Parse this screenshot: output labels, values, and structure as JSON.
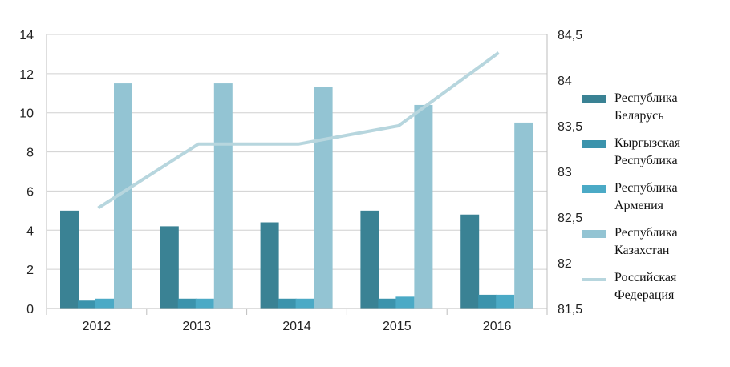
{
  "chart_data": {
    "type": "bar",
    "categories": [
      "2012",
      "2013",
      "2014",
      "2015",
      "2016"
    ],
    "series": [
      {
        "name": "Республика Беларусь",
        "kind": "bar",
        "axis": "left",
        "color": "#3A8294",
        "values": [
          5.0,
          4.2,
          4.4,
          5.0,
          4.8
        ]
      },
      {
        "name": "Кыргызская Республика",
        "kind": "bar",
        "axis": "left",
        "color": "#3B93AC",
        "values": [
          0.4,
          0.5,
          0.5,
          0.5,
          0.7
        ]
      },
      {
        "name": "Республика Армения",
        "kind": "bar",
        "axis": "left",
        "color": "#4BAAC6",
        "values": [
          0.5,
          0.5,
          0.5,
          0.6,
          0.7
        ]
      },
      {
        "name": "Республика Казахстан",
        "kind": "bar",
        "axis": "left",
        "color": "#93C4D3",
        "values": [
          11.5,
          11.5,
          11.3,
          10.4,
          9.5
        ]
      },
      {
        "name": "Российская Федерация",
        "kind": "line",
        "axis": "right",
        "color": "#B7D6DE",
        "values": [
          82.6,
          83.3,
          83.3,
          83.5,
          84.3
        ]
      }
    ],
    "ylim": [
      0,
      14
    ],
    "y_ticks": [
      "0",
      "2",
      "4",
      "6",
      "8",
      "10",
      "12",
      "14"
    ],
    "y2lim": [
      81.5,
      84.5
    ],
    "y2_ticks": [
      "81,5",
      "82",
      "82,5",
      "83",
      "83,5",
      "84",
      "84,5"
    ],
    "grid": true,
    "legend_position": "right",
    "title": "",
    "xlabel": "",
    "ylabel": ""
  }
}
